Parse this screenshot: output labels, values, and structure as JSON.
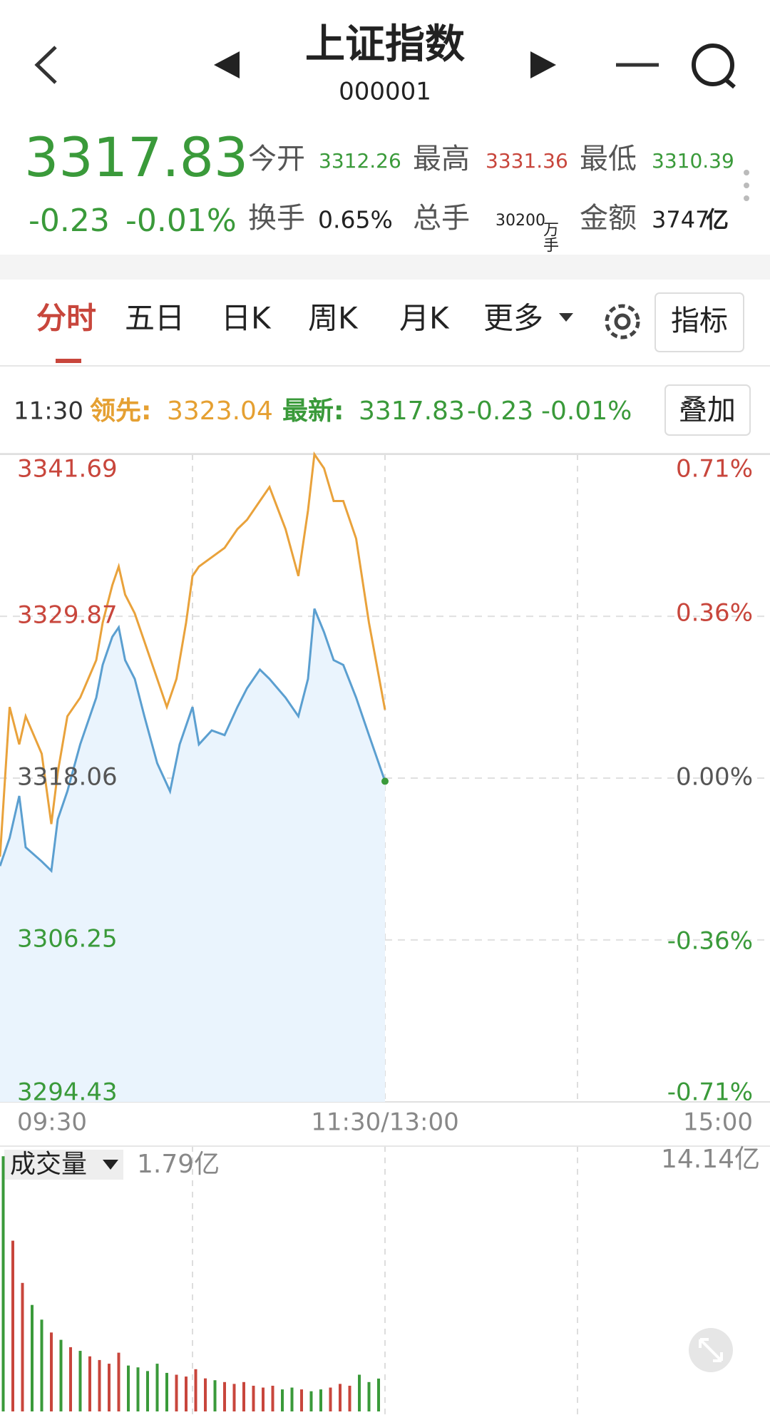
{
  "header": {
    "title": "上证指数",
    "code": "000001"
  },
  "quote": {
    "price": "3317.83",
    "change": "-0.23",
    "change_pct": "-0.01%",
    "stats": [
      {
        "label": "今开",
        "value": "3312.26"
      },
      {
        "label": "最高",
        "value": "3331.36"
      },
      {
        "label": "最低",
        "value": "3310.39"
      },
      {
        "label": "换手",
        "value": "0.65%"
      },
      {
        "label": "总手",
        "value": "30200",
        "unit": "万手"
      },
      {
        "label": "金额",
        "value": "3747",
        "unit": "亿"
      }
    ]
  },
  "tabs": [
    "分时",
    "五日",
    "日K",
    "周K",
    "月K",
    "更多"
  ],
  "indicator_button": "指标",
  "info_bar": {
    "time": "11:30",
    "lead_label": "领先:",
    "lead_value": "3323.04",
    "latest_label": "最新:",
    "latest_value": "3317.83",
    "latest_change": "-0.23",
    "latest_pct": "-0.01%",
    "overlay_button": "叠加"
  },
  "chart_data": [
    {
      "type": "line",
      "xlim": [
        0,
        240
      ],
      "xticks": [
        {
          "value": 0,
          "label": "09:30"
        },
        {
          "value": 120,
          "label": "11:30/13:00"
        },
        {
          "value": 240,
          "label": "15:00"
        }
      ],
      "ylim": [
        3294.43,
        3341.69
      ],
      "yticks": [
        3341.69,
        3329.87,
        3318.06,
        3306.25,
        3294.43
      ],
      "y2lim": [
        -0.71,
        0.71
      ],
      "y2ticks": [
        {
          "value": 0.71,
          "label": "0.71%"
        },
        {
          "value": 0.36,
          "label": "0.36%"
        },
        {
          "value": 0,
          "label": "0.00%"
        },
        {
          "value": -0.36,
          "label": "-0.36%"
        },
        {
          "value": -0.71,
          "label": "-0.71%"
        }
      ],
      "up_color": "#c8463c",
      "down_color": "#3a9a3a",
      "flat_color": "#555555",
      "grid": true,
      "series": [
        {
          "color": "#5b9fd0",
          "fill": "#eaf4fd",
          "end_dot_color": "#3a9a3a",
          "x": [
            0,
            3,
            6,
            8,
            13,
            16,
            18,
            21,
            25,
            30,
            32,
            35,
            37,
            39,
            42,
            45,
            49,
            53,
            56,
            60,
            62,
            66,
            70,
            74,
            77,
            81,
            84,
            89,
            93,
            96,
            98,
            101,
            104,
            107,
            111,
            115,
            120
          ],
          "values": [
            3311.64,
            3313.69,
            3316.76,
            3313.01,
            3311.98,
            3311.3,
            3315.05,
            3317.1,
            3320.52,
            3323.93,
            3326.32,
            3328.37,
            3329.06,
            3326.67,
            3325.3,
            3322.57,
            3319.15,
            3317.1,
            3320.52,
            3323.25,
            3320.52,
            3321.54,
            3321.2,
            3323.25,
            3324.62,
            3325.98,
            3325.3,
            3323.93,
            3322.57,
            3325.3,
            3330.42,
            3328.71,
            3326.67,
            3326.32,
            3323.93,
            3321.2,
            3317.83
          ]
        },
        {
          "color": "#e9a23b",
          "x": [
            0,
            3,
            6,
            8,
            13,
            16,
            18,
            21,
            25,
            30,
            32,
            35,
            37,
            39,
            42,
            45,
            49,
            52,
            55,
            58,
            60,
            62,
            66,
            70,
            74,
            77,
            81,
            84,
            89,
            93,
            96,
            98,
            101,
            104,
            107,
            111,
            115,
            120
          ],
          "values": [
            3312.32,
            3323.25,
            3320.52,
            3322.57,
            3319.84,
            3314.71,
            3318.47,
            3322.57,
            3323.93,
            3326.67,
            3329.4,
            3332.13,
            3333.5,
            3331.45,
            3330.08,
            3328.03,
            3325.3,
            3323.25,
            3325.3,
            3329.4,
            3332.81,
            3333.5,
            3334.18,
            3334.86,
            3336.23,
            3336.91,
            3338.28,
            3339.3,
            3336.23,
            3332.81,
            3337.59,
            3341.69,
            3340.67,
            3338.28,
            3338.28,
            3335.54,
            3329.4,
            3323.04
          ]
        }
      ]
    },
    {
      "type": "bar",
      "title": "成交量",
      "latest_label": "1.79亿",
      "xlim": [
        0,
        240
      ],
      "ylim": [
        0,
        14.14
      ],
      "yticks": [
        {
          "value": 14.14,
          "label": "14.14亿"
        }
      ],
      "x": [
        1,
        4,
        7,
        10,
        13,
        16,
        19,
        22,
        25,
        28,
        31,
        34,
        37,
        40,
        43,
        46,
        49,
        52,
        55,
        58,
        61,
        64,
        67,
        70,
        73,
        76,
        79,
        82,
        85,
        88,
        91,
        94,
        97,
        100,
        103,
        106,
        109,
        112,
        115,
        118
      ],
      "values": [
        13.9,
        9.3,
        7.0,
        5.8,
        5.0,
        4.3,
        3.9,
        3.5,
        3.3,
        3.0,
        2.8,
        2.6,
        3.2,
        2.5,
        2.4,
        2.2,
        2.6,
        2.1,
        2.0,
        1.9,
        2.3,
        1.8,
        1.7,
        1.6,
        1.5,
        1.6,
        1.4,
        1.3,
        1.4,
        1.2,
        1.3,
        1.2,
        1.1,
        1.2,
        1.3,
        1.5,
        1.4,
        2.0,
        1.6,
        1.79
      ],
      "colors": [
        "#3a9a3a",
        "#c8463c",
        "#c8463c",
        "#3a9a3a",
        "#3a9a3a",
        "#c8463c",
        "#3a9a3a",
        "#c8463c",
        "#3a9a3a",
        "#c8463c",
        "#c8463c",
        "#c8463c",
        "#c8463c",
        "#3a9a3a",
        "#3a9a3a",
        "#3a9a3a",
        "#3a9a3a",
        "#3a9a3a",
        "#c8463c",
        "#c8463c",
        "#c8463c",
        "#c8463c",
        "#3a9a3a",
        "#c8463c",
        "#c8463c",
        "#c8463c",
        "#c8463c",
        "#c8463c",
        "#c8463c",
        "#3a9a3a",
        "#3a9a3a",
        "#c8463c",
        "#3a9a3a",
        "#3a9a3a",
        "#c8463c",
        "#c8463c",
        "#c8463c",
        "#3a9a3a",
        "#3a9a3a",
        "#3a9a3a"
      ]
    }
  ]
}
